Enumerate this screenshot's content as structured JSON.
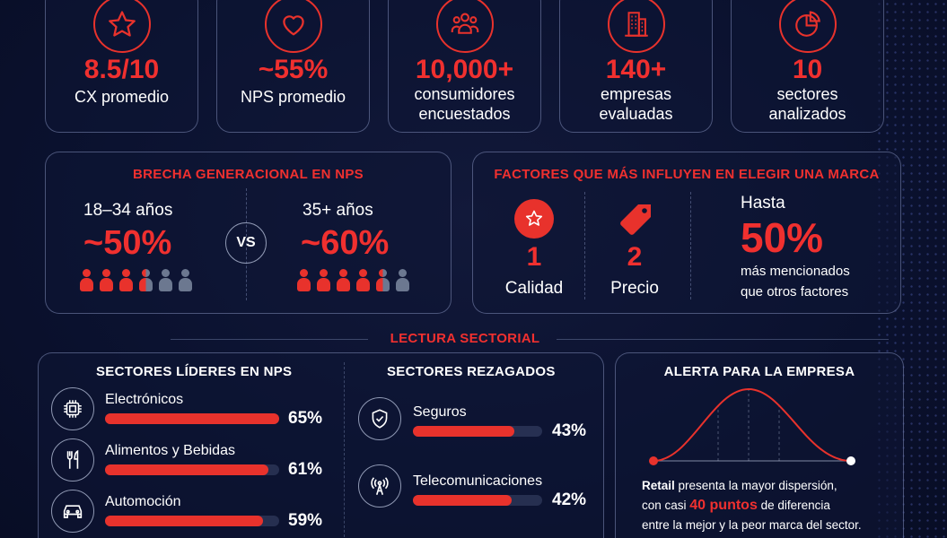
{
  "stats": [
    {
      "icon": "star-icon",
      "value": "8.5/10",
      "label": "CX promedio"
    },
    {
      "icon": "heart-icon",
      "value": "~55%",
      "label": "NPS promedio"
    },
    {
      "icon": "people-icon",
      "value": "10,000+",
      "label_lines": [
        "consumidores",
        "encuestados"
      ]
    },
    {
      "icon": "buildings-icon",
      "value": "140+",
      "label_lines": [
        "empresas",
        "evaluadas"
      ]
    },
    {
      "icon": "pie-chart-icon",
      "value": "10",
      "label_lines": [
        "sectores",
        "analizados"
      ]
    }
  ],
  "generational": {
    "title": "BRECHA GENERACIONAL EN NPS",
    "young": {
      "label": "18–34 años",
      "value": "~50%",
      "filled": 3.5,
      "total": 6
    },
    "vs": "VS",
    "older": {
      "label": "35+ años",
      "value": "~60%",
      "filled": 4.5,
      "total": 6
    }
  },
  "factors": {
    "title": "FACTORES QUE MÁS INFLUYEN EN ELEGIR UNA MARCA",
    "items": [
      {
        "rank": "1",
        "label": "Calidad",
        "icon": "star-badge-icon"
      },
      {
        "rank": "2",
        "label": "Precio",
        "icon": "price-tag-icon"
      }
    ],
    "prefix": "Hasta",
    "value": "50%",
    "desc_lines": [
      "más mencionados",
      "que otros factores"
    ]
  },
  "sectorial_heading": "LECTURA SECTORIAL",
  "leaders": {
    "title": "SECTORES LÍDERES EN NPS",
    "items": [
      {
        "name": "Electrónicos",
        "value": "65%",
        "pct": 65,
        "icon": "chip-icon"
      },
      {
        "name": "Alimentos y Bebidas",
        "value": "61%",
        "pct": 61,
        "icon": "cutlery-icon"
      },
      {
        "name": "Automoción",
        "value": "59%",
        "pct": 59,
        "icon": "car-icon"
      }
    ]
  },
  "laggards": {
    "title": "SECTORES REZAGADOS",
    "items": [
      {
        "name": "Seguros",
        "value": "43%",
        "pct": 43,
        "icon": "shield-check-icon"
      },
      {
        "name": "Telecomunicaciones",
        "value": "42%",
        "pct": 42,
        "icon": "antenna-icon"
      }
    ]
  },
  "alert": {
    "title": "ALERTA PARA LA EMPRESA",
    "line1_bold": "Retail",
    "line1_rest": " presenta la mayor dispersión,",
    "line2_pre": "con casi ",
    "line2_highlight": "40 puntos",
    "line2_post": " de diferencia",
    "line3": "entre la mejor y la peor marca del sector."
  },
  "colors": {
    "accent": "#e8322c",
    "background": "#0b1230",
    "muted": "#6c7890"
  }
}
